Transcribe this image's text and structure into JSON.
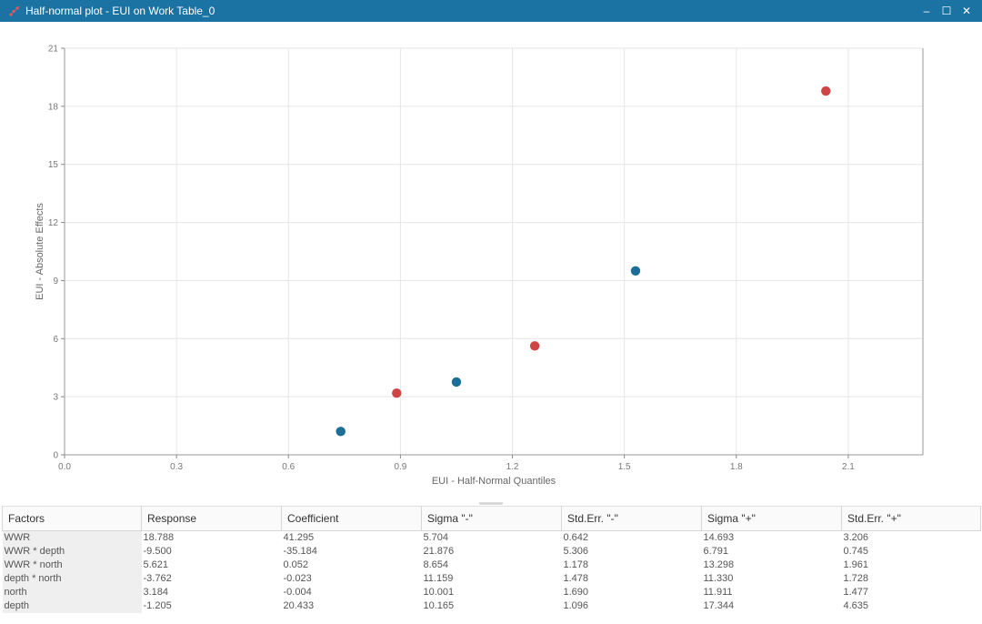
{
  "window": {
    "title": "Half-normal plot - EUI on Work Table_0",
    "controls": [
      "–",
      "☐",
      "✕"
    ]
  },
  "chart_data": {
    "type": "scatter",
    "xlabel": "EUI - Half-Normal Quantiles",
    "ylabel": "EUI - Absolute Effects",
    "xlim": [
      0.0,
      2.3
    ],
    "ylim": [
      0,
      21
    ],
    "xticks": [
      "0.0",
      "0.3",
      "0.6",
      "0.9",
      "1.2",
      "1.5",
      "1.8",
      "2.1"
    ],
    "yticks": [
      "0",
      "3",
      "6",
      "9",
      "12",
      "15",
      "18",
      "21"
    ],
    "grid": true,
    "colors": {
      "positive": "#cd4545",
      "negative": "#1b6e98"
    },
    "points": [
      {
        "x": 0.74,
        "y": 1.205,
        "color": "#1b6e98"
      },
      {
        "x": 0.89,
        "y": 3.184,
        "color": "#cd4545"
      },
      {
        "x": 1.05,
        "y": 3.762,
        "color": "#1b6e98"
      },
      {
        "x": 1.26,
        "y": 5.621,
        "color": "#cd4545"
      },
      {
        "x": 1.53,
        "y": 9.5,
        "color": "#1b6e98"
      },
      {
        "x": 2.04,
        "y": 18.788,
        "color": "#cd4545"
      }
    ]
  },
  "table": {
    "headers": [
      "Factors",
      "Response",
      "Coefficient",
      "Sigma \"-\"",
      "Std.Err. \"-\"",
      "Sigma \"+\"",
      "Std.Err. \"+\""
    ],
    "rows": [
      [
        "WWR",
        "18.788",
        "41.295",
        "5.704",
        "0.642",
        "14.693",
        "3.206"
      ],
      [
        "WWR * depth",
        "-9.500",
        "-35.184",
        "21.876",
        "5.306",
        "6.791",
        "0.745"
      ],
      [
        "WWR * north",
        "5.621",
        "0.052",
        "8.654",
        "1.178",
        "13.298",
        "1.961"
      ],
      [
        "depth * north",
        "-3.762",
        "-0.023",
        "11.159",
        "1.478",
        "11.330",
        "1.728"
      ],
      [
        "north",
        "3.184",
        "-0.004",
        "10.001",
        "1.690",
        "11.911",
        "1.477"
      ],
      [
        "depth",
        "-1.205",
        "20.433",
        "10.165",
        "1.096",
        "17.344",
        "4.635"
      ]
    ]
  }
}
